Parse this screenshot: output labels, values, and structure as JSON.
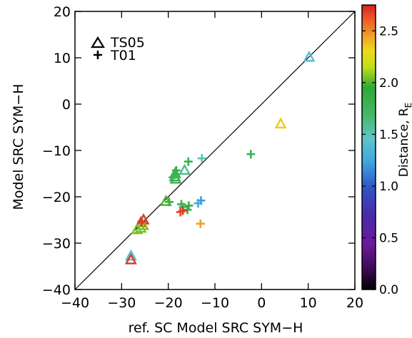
{
  "chart_data": {
    "type": "scatter",
    "xlabel": "ref. SC  Model SRC SYM−H",
    "ylabel": "Model SRC SYM−H",
    "xlim": [
      -40,
      20
    ],
    "ylim": [
      -40,
      20
    ],
    "x_ticks": [
      "−40",
      "−30",
      "−20",
      "−10",
      "0",
      "10",
      "20"
    ],
    "y_ticks": [
      "−40",
      "−30",
      "−20",
      "−10",
      "0",
      "10",
      "20"
    ],
    "x_tick_values": [
      -40,
      -30,
      -20,
      -10,
      0,
      10,
      20
    ],
    "y_tick_values": [
      -40,
      -30,
      -20,
      -10,
      0,
      10,
      20
    ],
    "reference_line": "y = x",
    "grid": false,
    "legend_position": "top-left",
    "legend": [
      {
        "marker": "triangle",
        "label": "TS05"
      },
      {
        "marker": "plus",
        "label": "T01"
      }
    ],
    "colorbar": {
      "label": "Distance, R",
      "label_subscript": "E",
      "range": [
        0.0,
        2.75
      ],
      "ticks": [
        "0.0",
        "0.5",
        "1.0",
        "1.5",
        "2.0",
        "2.5"
      ],
      "tick_values": [
        0.0,
        0.5,
        1.0,
        1.5,
        2.0,
        2.5
      ]
    },
    "series": [
      {
        "name": "TS05",
        "marker": "triangle",
        "points": [
          {
            "x": 10.2,
            "y": 10.1,
            "d": 1.4
          },
          {
            "x": 4.1,
            "y": -4.3,
            "d": 2.35
          },
          {
            "x": -16.5,
            "y": -14.3,
            "d": 1.6
          },
          {
            "x": -18.5,
            "y": -15.0,
            "d": 1.8
          },
          {
            "x": -18.6,
            "y": -15.7,
            "d": 1.82
          },
          {
            "x": -18.4,
            "y": -16.2,
            "d": 1.8
          },
          {
            "x": -20.5,
            "y": -21.0,
            "d": 2.0
          },
          {
            "x": -25.3,
            "y": -25.0,
            "d": 2.7
          },
          {
            "x": -25.9,
            "y": -25.6,
            "d": 2.65
          },
          {
            "x": -25.4,
            "y": -26.2,
            "d": 2.05
          },
          {
            "x": -25.9,
            "y": -26.8,
            "d": 2.05
          },
          {
            "x": -26.7,
            "y": -27.1,
            "d": 2.05
          },
          {
            "x": -28.0,
            "y": -32.8,
            "d": 1.4
          },
          {
            "x": -28.0,
            "y": -33.6,
            "d": 2.7
          }
        ]
      },
      {
        "name": "T01",
        "marker": "plus",
        "points": [
          {
            "x": -2.3,
            "y": -10.8,
            "d": 1.78
          },
          {
            "x": -12.8,
            "y": -11.7,
            "d": 1.5
          },
          {
            "x": -15.7,
            "y": -12.4,
            "d": 1.85
          },
          {
            "x": -18.3,
            "y": -14.3,
            "d": 1.85
          },
          {
            "x": -18.5,
            "y": -15.2,
            "d": 1.8
          },
          {
            "x": -19.0,
            "y": -15.8,
            "d": 1.75
          },
          {
            "x": -19.8,
            "y": -21.1,
            "d": 1.85
          },
          {
            "x": -17.2,
            "y": -21.6,
            "d": 1.8
          },
          {
            "x": -16.8,
            "y": -22.2,
            "d": 1.7
          },
          {
            "x": -15.6,
            "y": -21.9,
            "d": 1.85
          },
          {
            "x": -15.9,
            "y": -22.8,
            "d": 1.85
          },
          {
            "x": -13.0,
            "y": -20.8,
            "d": 1.2
          },
          {
            "x": -13.6,
            "y": -21.4,
            "d": 1.25
          },
          {
            "x": -16.9,
            "y": -23.0,
            "d": 2.7
          },
          {
            "x": -17.4,
            "y": -23.3,
            "d": 2.65
          },
          {
            "x": -13.1,
            "y": -25.8,
            "d": 2.45
          },
          {
            "x": -25.7,
            "y": -25.4,
            "d": 2.7
          }
        ]
      }
    ]
  }
}
